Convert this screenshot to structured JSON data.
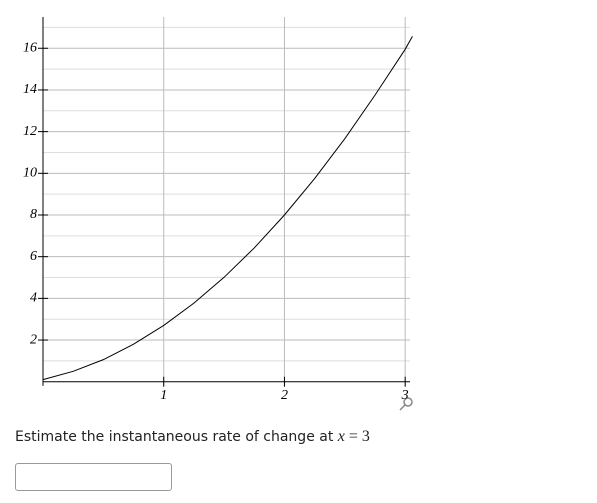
{
  "chart_data": {
    "type": "line",
    "x": [
      0,
      0.25,
      0.5,
      0.75,
      1,
      1.25,
      1.5,
      1.75,
      2,
      2.25,
      2.5,
      2.75,
      3,
      3.06
    ],
    "values": [
      0.1,
      0.5,
      1.06,
      1.8,
      2.7,
      3.77,
      5.01,
      6.42,
      8.0,
      9.75,
      11.66,
      13.75,
      15.95,
      16.57
    ],
    "color": "#000000",
    "xlim": [
      0,
      3.04
    ],
    "ylim": [
      -0.2,
      17.5
    ],
    "xticks": [
      1,
      2,
      3
    ],
    "yticks": [
      2,
      4,
      6,
      8,
      10,
      12,
      14,
      16
    ],
    "yminor": [
      1,
      3,
      5,
      7,
      9,
      11,
      13,
      15,
      17
    ],
    "grid": true
  },
  "question": {
    "text": "Estimate the instantaneous rate of change at",
    "var": "x",
    "eq": "= 3"
  }
}
